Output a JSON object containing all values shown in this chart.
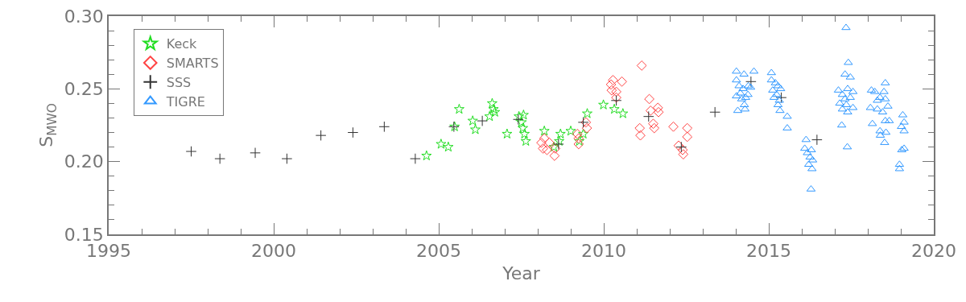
{
  "chart_data": {
    "type": "scatter",
    "xlabel": "Year",
    "ylabel": "S$_{MWO}$",
    "legend": "top left",
    "grid": false,
    "xlim": [
      1995,
      2020
    ],
    "xticks": [
      1995,
      {
        "value": 1996,
        "label": null
      },
      {
        "value": 1997,
        "label": null
      },
      {
        "value": 1998,
        "label": null
      },
      {
        "value": 1999,
        "label": null
      },
      2000,
      {
        "value": 2001,
        "label": null
      },
      {
        "value": 2002,
        "label": null
      },
      {
        "value": 2003,
        "label": null
      },
      {
        "value": 2004,
        "label": null
      },
      2005,
      {
        "value": 2006,
        "label": null
      },
      {
        "value": 2007,
        "label": null
      },
      {
        "value": 2008,
        "label": null
      },
      {
        "value": 2009,
        "label": null
      },
      2010,
      {
        "value": 2011,
        "label": null
      },
      {
        "value": 2012,
        "label": null
      },
      {
        "value": 2013,
        "label": null
      },
      {
        "value": 2014,
        "label": null
      },
      2015,
      {
        "value": 2016,
        "label": null
      },
      {
        "value": 2017,
        "label": null
      },
      {
        "value": 2018,
        "label": null
      },
      {
        "value": 2019,
        "label": null
      },
      2020
    ],
    "ylim": [
      0.15,
      0.3
    ],
    "yticks": [
      {
        "value": 0.15,
        "label": "0.15"
      },
      {
        "value": 0.16,
        "label": null
      },
      {
        "value": 0.17,
        "label": null
      },
      {
        "value": 0.18,
        "label": null
      },
      {
        "value": 0.19,
        "label": null
      },
      {
        "value": 0.2,
        "label": "0.20"
      },
      {
        "value": 0.21,
        "label": null
      },
      {
        "value": 0.22,
        "label": null
      },
      {
        "value": 0.23,
        "label": null
      },
      {
        "value": 0.24,
        "label": null
      },
      {
        "value": 0.25,
        "label": "0.25"
      },
      {
        "value": 0.26,
        "label": null
      },
      {
        "value": 0.27,
        "label": null
      },
      {
        "value": 0.28,
        "label": null
      },
      {
        "value": 0.29,
        "label": null
      },
      {
        "value": 0.3,
        "label": "0.30"
      }
    ],
    "series": [
      {
        "name": "Keck",
        "color": "#22dd22",
        "marker": "star",
        "x": [
          2004.63,
          2005.07,
          2005.29,
          2005.48,
          2005.62,
          2006.03,
          2006.11,
          2006.54,
          2006.62,
          2006.66,
          2006.7,
          2007.07,
          2007.43,
          2007.51,
          2007.55,
          2007.6,
          2007.64,
          2007.57,
          2008.2,
          2008.49,
          2008.69,
          2008.65,
          2009.0,
          2009.26,
          2009.38,
          2009.5,
          2009.99,
          2010.32,
          2010.58
        ],
        "values": [
          0.204,
          0.212,
          0.21,
          0.224,
          0.236,
          0.228,
          0.222,
          0.231,
          0.24,
          0.236,
          0.234,
          0.219,
          0.231,
          0.227,
          0.223,
          0.219,
          0.214,
          0.232,
          0.221,
          0.21,
          0.219,
          0.214,
          0.221,
          0.214,
          0.219,
          0.233,
          0.239,
          0.236,
          0.233
        ]
      },
      {
        "name": "SMARTS",
        "color": "#ff4444",
        "marker": "diamond",
        "x": [
          2008.2,
          2008.11,
          2008.16,
          2008.28,
          2008.35,
          2008.51,
          2008.53,
          2009.2,
          2009.24,
          2009.24,
          2009.46,
          2009.49,
          2010.28,
          2010.55,
          2010.22,
          2010.24,
          2010.38,
          2010.38,
          2011.15,
          2011.38,
          2011.64,
          2011.66,
          2011.42,
          2011.09,
          2011.11,
          2011.5,
          2011.53,
          2012.11,
          2012.53,
          2012.53,
          2012.27,
          2012.39,
          2012.41
        ],
        "values": [
          0.216,
          0.213,
          0.209,
          0.208,
          0.213,
          0.204,
          0.209,
          0.219,
          0.216,
          0.212,
          0.227,
          0.223,
          0.256,
          0.255,
          0.253,
          0.249,
          0.248,
          0.244,
          0.266,
          0.243,
          0.237,
          0.234,
          0.235,
          0.223,
          0.218,
          0.226,
          0.223,
          0.224,
          0.223,
          0.217,
          0.211,
          0.208,
          0.205
        ]
      },
      {
        "name": "SSS",
        "color": "#333333",
        "marker": "cross",
        "x": [
          1997.5,
          1998.37,
          1999.44,
          2000.4,
          2001.43,
          2002.4,
          2003.35,
          2004.29,
          2005.46,
          2006.32,
          2007.41,
          2008.63,
          2009.38,
          2010.38,
          2011.36,
          2012.35,
          2013.37,
          2014.46,
          2015.38,
          2016.46
        ],
        "values": [
          0.207,
          0.202,
          0.206,
          0.202,
          0.218,
          0.22,
          0.224,
          0.202,
          0.224,
          0.228,
          0.229,
          0.212,
          0.227,
          0.242,
          0.231,
          0.21,
          0.234,
          0.255,
          0.244,
          0.215
        ]
      },
      {
        "name": "TIGRE",
        "color": "#3399ff",
        "marker": "triangle",
        "x": [
          2014.02,
          2014.25,
          2014.55,
          2014.02,
          2014.1,
          2014.22,
          2014.38,
          2014.45,
          2014.02,
          2014.14,
          2014.3,
          2014.18,
          2014.26,
          2014.28,
          2014.06,
          2014.37,
          2015.08,
          2015.08,
          2015.2,
          2015.28,
          2015.12,
          2015.24,
          2015.16,
          2015.32,
          2015.28,
          2015.34,
          2015.56,
          2015.56,
          2015.36,
          2016.13,
          2016.09,
          2016.17,
          2016.29,
          2016.25,
          2016.33,
          2016.21,
          2016.31,
          2016.28,
          2017.34,
          2017.41,
          2017.31,
          2017.47,
          2017.11,
          2017.23,
          2017.39,
          2017.55,
          2017.31,
          2017.47,
          2017.15,
          2017.35,
          2017.55,
          2017.23,
          2017.39,
          2017.21,
          2017.38,
          2018.11,
          2018.21,
          2018.53,
          2018.49,
          2018.37,
          2018.29,
          2018.53,
          2018.08,
          2018.29,
          2018.45,
          2018.61,
          2018.53,
          2018.65,
          2018.14,
          2018.37,
          2018.55,
          2018.38,
          2018.51,
          2019.06,
          2019.1,
          2019.02,
          2019.1,
          2019.1,
          2019.03,
          2018.96,
          2018.96
        ],
        "values": [
          0.262,
          0.26,
          0.262,
          0.256,
          0.252,
          0.25,
          0.252,
          0.251,
          0.245,
          0.247,
          0.244,
          0.243,
          0.239,
          0.236,
          0.235,
          0.246,
          0.261,
          0.256,
          0.254,
          0.252,
          0.249,
          0.246,
          0.244,
          0.242,
          0.239,
          0.235,
          0.231,
          0.223,
          0.25,
          0.215,
          0.209,
          0.206,
          0.208,
          0.203,
          0.201,
          0.198,
          0.195,
          0.181,
          0.292,
          0.268,
          0.26,
          0.258,
          0.249,
          0.246,
          0.25,
          0.248,
          0.243,
          0.244,
          0.24,
          0.239,
          0.237,
          0.236,
          0.234,
          0.225,
          0.21,
          0.249,
          0.248,
          0.254,
          0.248,
          0.244,
          0.242,
          0.243,
          0.237,
          0.236,
          0.234,
          0.238,
          0.228,
          0.228,
          0.226,
          0.221,
          0.22,
          0.218,
          0.213,
          0.232,
          0.227,
          0.224,
          0.221,
          0.209,
          0.208,
          0.198,
          0.195
        ]
      }
    ]
  }
}
